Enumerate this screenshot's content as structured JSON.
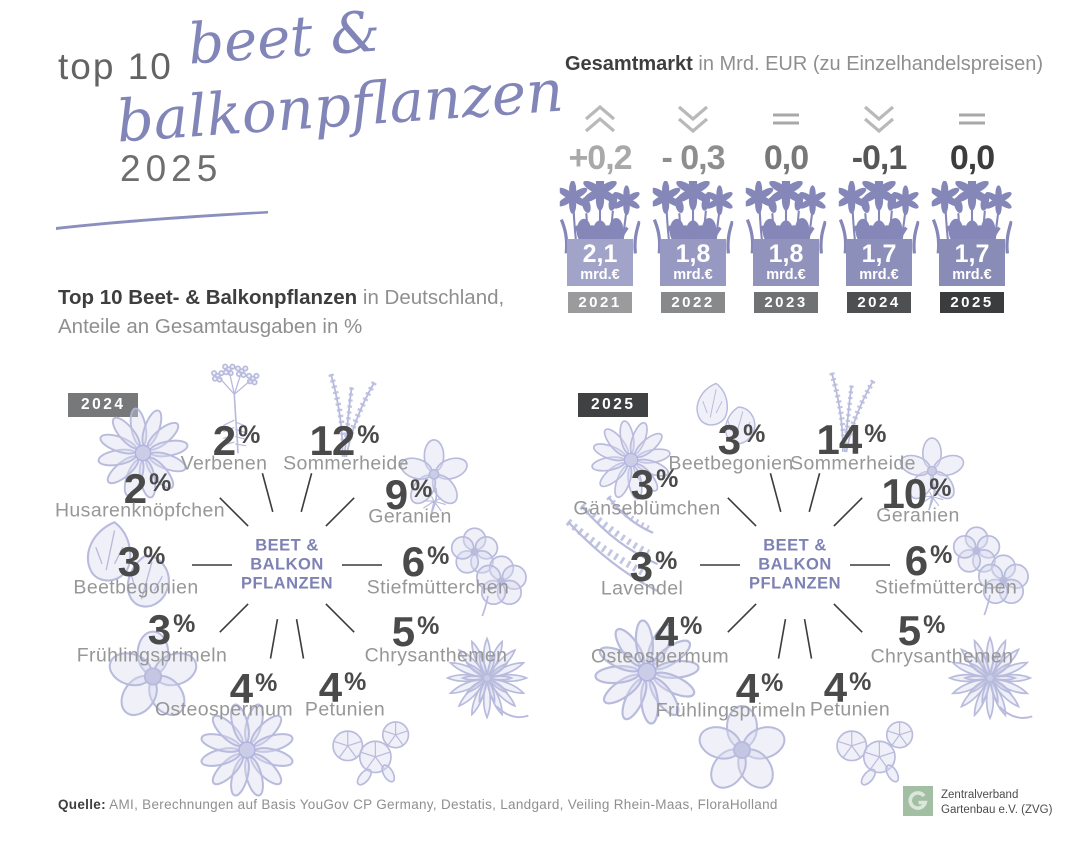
{
  "header": {
    "top10": "top 10",
    "script1": "beet &",
    "script2": "balkonpflanzen",
    "year": "2025",
    "subtitle_bold": "Top 10 Beet- & Balkonpflanzen",
    "subtitle_rest": " in Deutschland,",
    "subtitle_line2": "Anteile an Gesamtausgaben in %"
  },
  "market": {
    "title_bold": "Gesamtmarkt",
    "title_rest": " in Mrd. EUR (zu Einzelhandelspreisen)",
    "years": [
      {
        "year": "2021",
        "change": "+0,2",
        "trend": "up",
        "value": "2,1",
        "unit": "mrd.€"
      },
      {
        "year": "2022",
        "change": "- 0,3",
        "trend": "down",
        "value": "1,8",
        "unit": "mrd.€"
      },
      {
        "year": "2023",
        "change": "0,0",
        "trend": "flat",
        "value": "1,8",
        "unit": "mrd.€"
      },
      {
        "year": "2024",
        "change": "-0,1",
        "trend": "down",
        "value": "1,7",
        "unit": "mrd.€"
      },
      {
        "year": "2025",
        "change": "0,0",
        "trend": "flat",
        "value": "1,7",
        "unit": "mrd.€"
      }
    ]
  },
  "hub": {
    "line1": "BEET &",
    "line2": "BALKON",
    "line3": "PFLANZEN"
  },
  "percent_sign": "%",
  "charts": [
    {
      "year_label": "2024",
      "items": [
        {
          "name": "Verbenen",
          "value": "2",
          "icon": "umbel-icon"
        },
        {
          "name": "Sommerheide",
          "value": "12",
          "icon": "heather-icon"
        },
        {
          "name": "Geranien",
          "value": "9",
          "icon": "bloom5-icon"
        },
        {
          "name": "Stiefmütterchen",
          "value": "6",
          "icon": "pansy-icon"
        },
        {
          "name": "Chrysanthemen",
          "value": "5",
          "icon": "dahlia-icon"
        },
        {
          "name": "Petunien",
          "value": "4",
          "icon": "petunia-icon"
        },
        {
          "name": "Osteospermum",
          "value": "4",
          "icon": "daisy-icon"
        },
        {
          "name": "Frühlingsprimeln",
          "value": "3",
          "icon": "anemone-icon"
        },
        {
          "name": "Beetbegonien",
          "value": "3",
          "icon": "begonia-icon"
        },
        {
          "name": "Husarenknöpfchen",
          "value": "2",
          "icon": "daisy-icon"
        }
      ]
    },
    {
      "year_label": "2025",
      "items": [
        {
          "name": "Beetbegonien",
          "value": "3",
          "icon": "begonia-icon"
        },
        {
          "name": "Sommerheide",
          "value": "14",
          "icon": "heather-icon"
        },
        {
          "name": "Geranien",
          "value": "10",
          "icon": "bloom5-icon"
        },
        {
          "name": "Stiefmütterchen",
          "value": "6",
          "icon": "pansy-icon"
        },
        {
          "name": "Chrysanthemen",
          "value": "5",
          "icon": "dahlia-icon"
        },
        {
          "name": "Petunien",
          "value": "4",
          "icon": "petunia-icon"
        },
        {
          "name": "Frühlingsprimeln",
          "value": "4",
          "icon": "anemone-icon"
        },
        {
          "name": "Osteospermum",
          "value": "4",
          "icon": "daisy-icon"
        },
        {
          "name": "Lavendel",
          "value": "3",
          "icon": "lavender-icon"
        },
        {
          "name": "Gänseblümchen",
          "value": "3",
          "icon": "daisy-icon"
        }
      ]
    }
  ],
  "footer": {
    "source_label": "Quelle:",
    "source_text": " AMI, Berechnungen auf Basis YouGov CP Germany, Destatis, Landgard, Veiling Rhein-Maas, FloraHolland",
    "logo_line1": "Zentralverband",
    "logo_line2": "Gartenbau e.V. (ZVG)"
  },
  "colors": {
    "accent_purple": "#8185b8",
    "flower_line_purple": "#b3b6da",
    "hub_text_purple": "#7e81b4",
    "dark_text": "#3e3e3e",
    "gray_text": "#8f8f8f",
    "logo_green": "#a2bfa4",
    "change_grays": [
      "#a9a9a9",
      "#8e8e8e",
      "#787878",
      "#565656",
      "#3c3c3c"
    ],
    "year_box_grays": [
      "#9b9b9d",
      "#88898b",
      "#707173",
      "#4e4f51",
      "#3b3c3e"
    ],
    "value_box_purples": [
      "#a2a3c9",
      "#9899c3",
      "#9193bd",
      "#8d8fbb",
      "#8a8cb8"
    ],
    "year_badge_grays": [
      "#77787a",
      "#3f4143"
    ]
  },
  "chart_data": [
    {
      "type": "bar",
      "title": "Gesamtmarkt in Mrd. EUR (zu Einzelhandelspreisen)",
      "categories": [
        "2021",
        "2022",
        "2023",
        "2024",
        "2025"
      ],
      "values": [
        2.1,
        1.8,
        1.8,
        1.7,
        1.7
      ],
      "ylabel": "Mrd. EUR",
      "annotations_change": [
        "+0,2",
        "-0,3",
        "0,0",
        "-0,1",
        "0,0"
      ],
      "trends": [
        "up",
        "down",
        "flat",
        "down",
        "flat"
      ]
    },
    {
      "type": "bar",
      "title": "Top 10 Beet- & Balkonpflanzen in Deutschland 2024, Anteile an Gesamtausgaben in %",
      "categories": [
        "Sommerheide",
        "Geranien",
        "Stiefmütterchen",
        "Chrysanthemen",
        "Petunien",
        "Osteospermum",
        "Frühlingsprimeln",
        "Beetbegonien",
        "Verbenen",
        "Husarenknöpfchen"
      ],
      "values": [
        12,
        9,
        6,
        5,
        4,
        4,
        3,
        3,
        2,
        2
      ]
    },
    {
      "type": "bar",
      "title": "Top 10 Beet- & Balkonpflanzen in Deutschland 2025, Anteile an Gesamtausgaben in %",
      "categories": [
        "Sommerheide",
        "Geranien",
        "Stiefmütterchen",
        "Chrysanthemen",
        "Petunien",
        "Frühlingsprimeln",
        "Osteospermum",
        "Beetbegonien",
        "Lavendel",
        "Gänseblümchen"
      ],
      "values": [
        14,
        10,
        6,
        5,
        4,
        4,
        4,
        3,
        3,
        3
      ]
    }
  ]
}
